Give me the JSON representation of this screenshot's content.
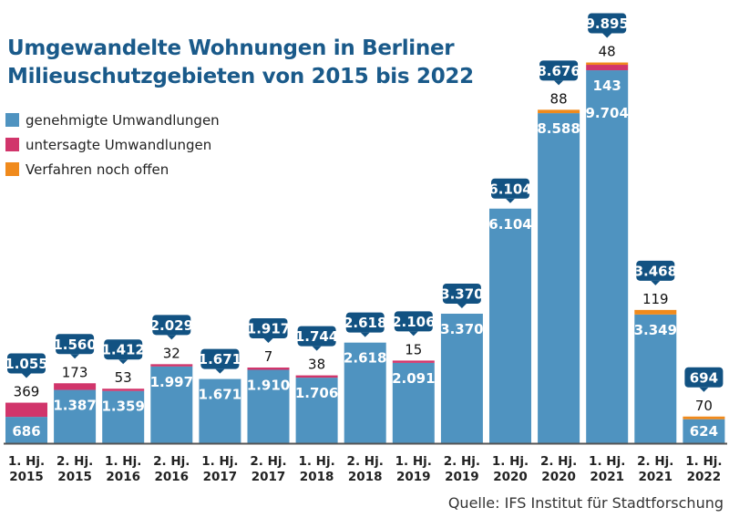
{
  "chart_data": {
    "type": "bar",
    "stacked": true,
    "title": "Umgewandelte Wohnungen in Berliner Milieuschutzgebieten von 2015 bis 2022",
    "categories": [
      [
        "1. Hj.",
        "2015"
      ],
      [
        "2. Hj.",
        "2015"
      ],
      [
        "1. Hj.",
        "2016"
      ],
      [
        "2. Hj.",
        "2016"
      ],
      [
        "1. Hj.",
        "2017"
      ],
      [
        "2. Hj.",
        "2017"
      ],
      [
        "1. Hj.",
        "2018"
      ],
      [
        "2. Hj.",
        "2018"
      ],
      [
        "1. Hj.",
        "2019"
      ],
      [
        "2. Hj.",
        "2019"
      ],
      [
        "1. Hj.",
        "2020"
      ],
      [
        "2. Hj.",
        "2020"
      ],
      [
        "1. Hj.",
        "2021"
      ],
      [
        "2. Hj.",
        "2021"
      ],
      [
        "1. Hj.",
        "2022"
      ]
    ],
    "series": [
      {
        "name": "genehmigte Umwandlungen",
        "color": "#4f93c0",
        "values": [
          686,
          1387,
          1359,
          1997,
          1671,
          1910,
          1706,
          2618,
          2091,
          3370,
          6104,
          8588,
          9704,
          3349,
          624
        ],
        "labels": [
          "686",
          "1.387",
          "1.359",
          "1.997",
          "1.671",
          "1.910",
          "1.706",
          "2.618",
          "2.091",
          "3.370",
          "6.104",
          "8.588",
          "9.704",
          "3.349",
          "624"
        ]
      },
      {
        "name": "untersagte Umwandlungen",
        "color": "#d1356b",
        "values": [
          369,
          173,
          53,
          32,
          0,
          7,
          38,
          0,
          15,
          0,
          0,
          0,
          143,
          0,
          0
        ],
        "labels": [
          "369",
          "173",
          "53",
          "32",
          "",
          "7",
          "38",
          "",
          "15",
          "",
          "",
          "",
          "143",
          "",
          ""
        ]
      },
      {
        "name": "Verfahren noch offen",
        "color": "#f08a1c",
        "values": [
          0,
          0,
          0,
          0,
          0,
          0,
          0,
          0,
          0,
          0,
          0,
          88,
          48,
          119,
          70
        ],
        "labels": [
          "",
          "",
          "",
          "",
          "",
          "",
          "",
          "",
          "",
          "",
          "",
          "88",
          "48",
          "119",
          "70"
        ]
      }
    ],
    "totals": [
      1055,
      1560,
      1412,
      2029,
      1671,
      1917,
      1744,
      2618,
      2106,
      3370,
      6104,
      8676,
      9895,
      3468,
      694
    ],
    "total_labels": [
      "1.055",
      "1.560",
      "1.412",
      "2.029",
      "1.671",
      "1.917",
      "1.744",
      "2.618",
      "2.106",
      "3.370",
      "6.104",
      "8.676",
      "9.895",
      "3.468",
      "694"
    ],
    "ylim": [
      0,
      9895
    ],
    "grid": false,
    "legend_position": "top-left",
    "xlabel": "",
    "ylabel": ""
  },
  "title_lines": [
    "Umgewandelte Wohnungen in Berliner",
    "Milieuschutzgebieten von 2015 bis 2022"
  ],
  "legend": [
    {
      "label": "genehmigte Umwandlungen",
      "color": "#4f93c0"
    },
    {
      "label": "untersagte Umwandlungen",
      "color": "#d1356b"
    },
    {
      "label": "Verfahren noch offen",
      "color": "#f08a1c"
    }
  ],
  "colors": {
    "title": "#1a5a8a",
    "callout": "#125282",
    "axis": "#555555"
  },
  "source": "Quelle: IFS Institut für Stadtforschung"
}
